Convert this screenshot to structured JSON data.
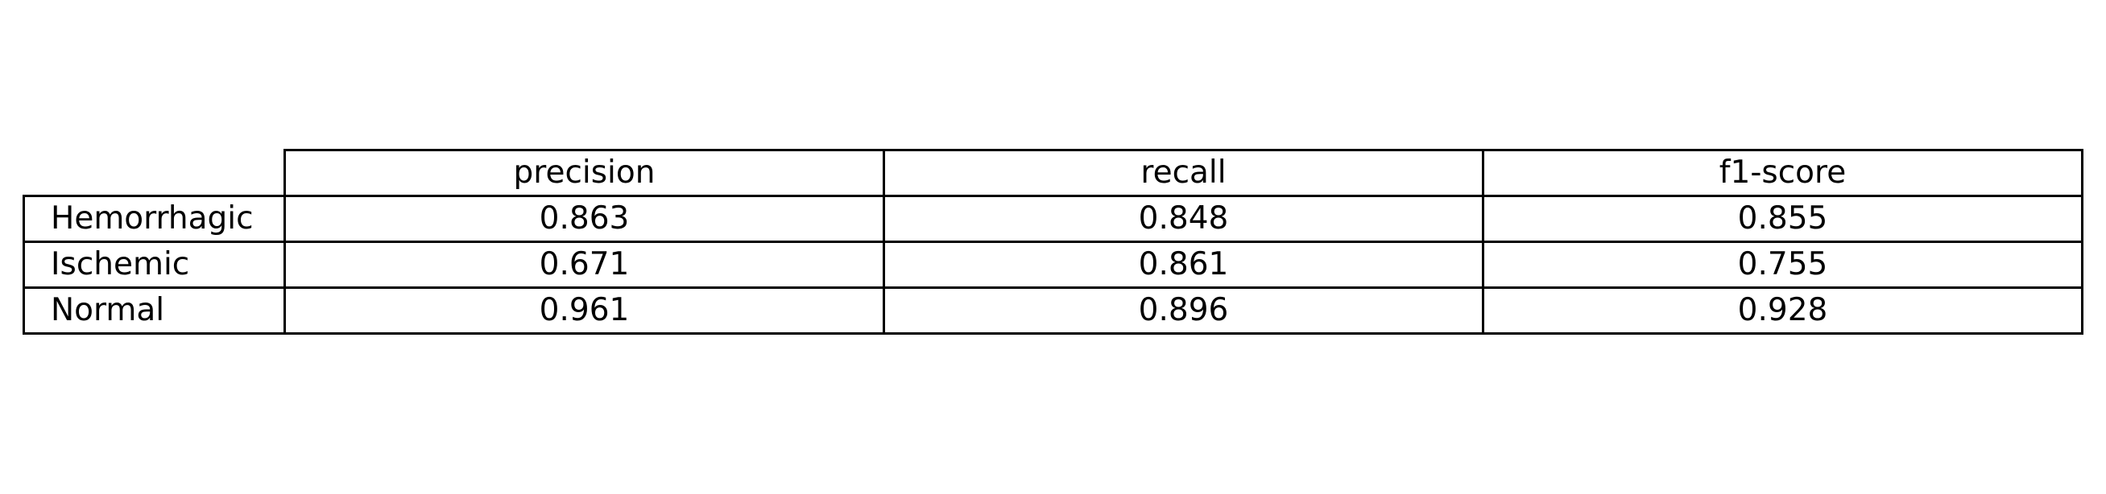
{
  "chart_data": {
    "type": "table",
    "columns": [
      "precision",
      "recall",
      "f1-score"
    ],
    "rows": [
      {
        "label": "Hemorrhagic",
        "values": [
          "0.863",
          "0.848",
          "0.855"
        ]
      },
      {
        "label": "Ischemic",
        "values": [
          "0.671",
          "0.861",
          "0.755"
        ]
      },
      {
        "label": "Normal",
        "values": [
          "0.961",
          "0.896",
          "0.928"
        ]
      }
    ]
  }
}
